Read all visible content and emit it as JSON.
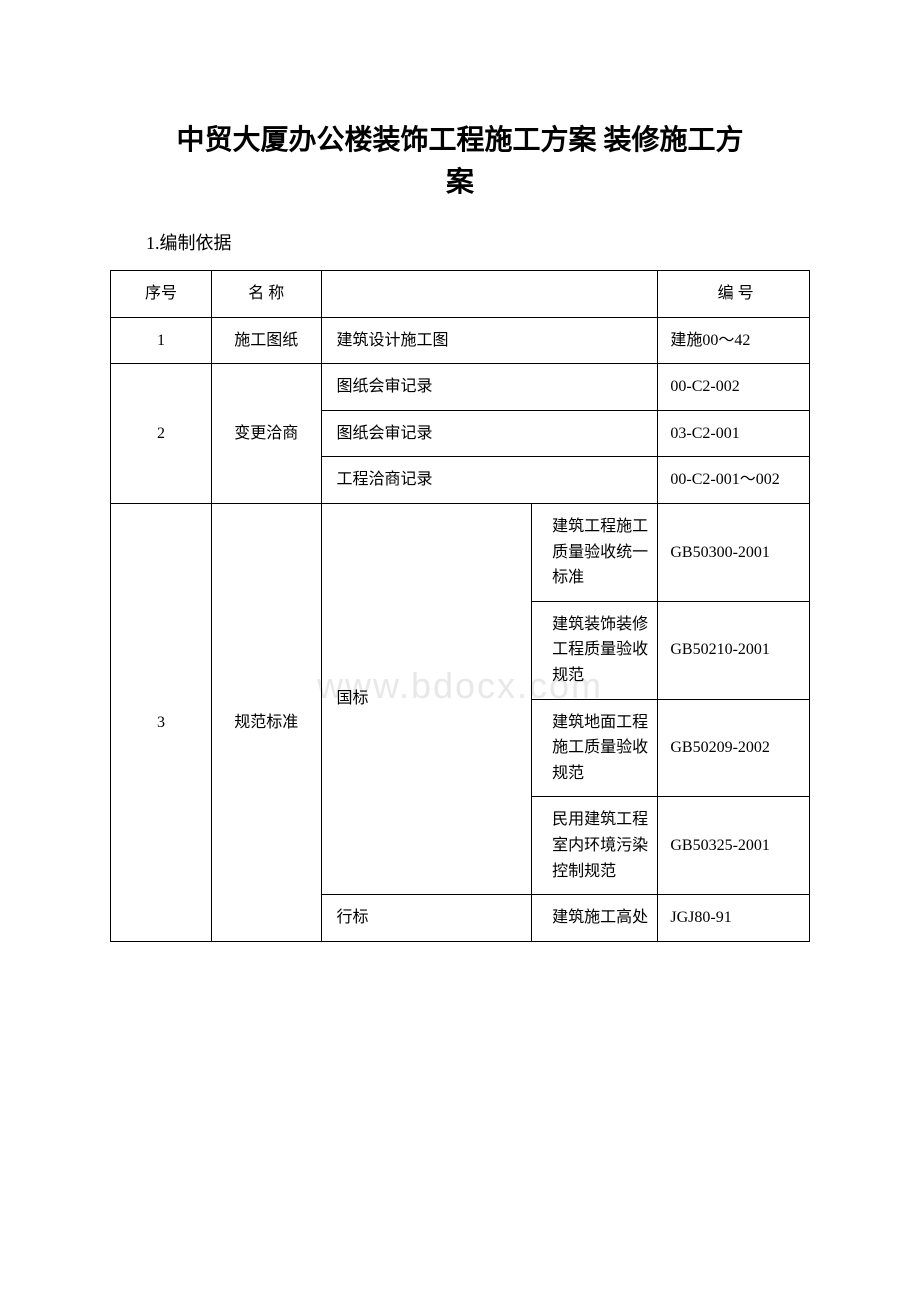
{
  "title_line1": "中贸大厦办公楼装饰工程施工方案 装修施工方",
  "title_line2": "案",
  "section_heading": "1.编制依据",
  "watermark": "www.bdocx.com",
  "table": {
    "headers": {
      "seq": "序号",
      "name": "名 称",
      "code": "编 号"
    },
    "rows": [
      {
        "seq": "1",
        "name": "施工图纸",
        "desc": "建筑设计施工图",
        "code": "建施00～42"
      },
      {
        "seq": "2",
        "name": "变更洽商",
        "items": [
          {
            "desc": "图纸会审记录",
            "code": "00-C2-002"
          },
          {
            "desc": "图纸会审记录",
            "code": "03-C2-001"
          },
          {
            "desc": "工程洽商记录",
            "code": "00-C2-001～002"
          }
        ]
      },
      {
        "seq": "3",
        "name": "规范标准",
        "groups": [
          {
            "std": "国标",
            "items": [
              {
                "sub": "建筑工程施工质量验收统一标准",
                "code": "GB50300-2001"
              },
              {
                "sub": "建筑装饰装修工程质量验收规范",
                "code": "GB50210-2001"
              },
              {
                "sub": "建筑地面工程施工质量验收规范",
                "code": "GB50209-2002"
              },
              {
                "sub": "民用建筑工程室内环境污染控制规范",
                "code": "GB50325-2001"
              }
            ]
          },
          {
            "std": "行标",
            "items": [
              {
                "sub": "建筑施工高处",
                "code": "JGJ80-91"
              }
            ]
          }
        ]
      }
    ]
  }
}
